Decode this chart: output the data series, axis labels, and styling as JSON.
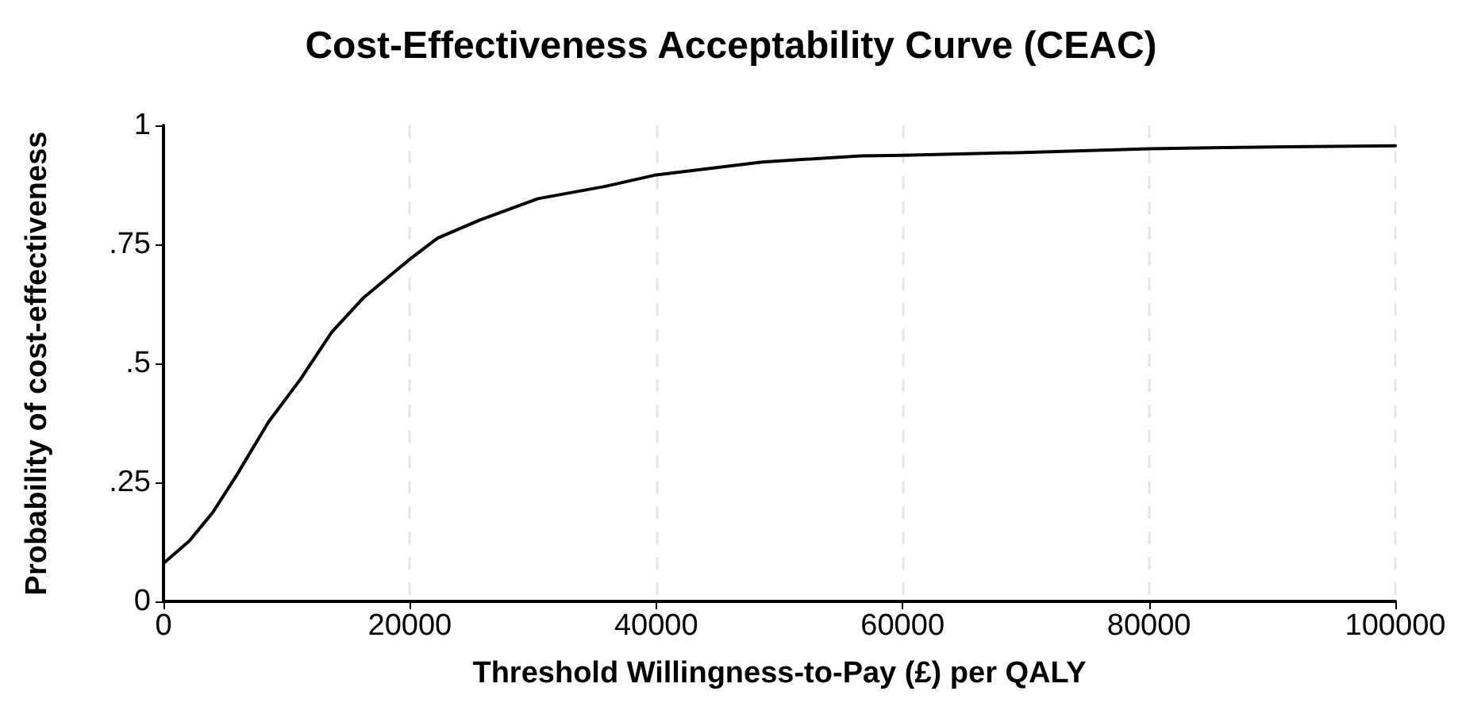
{
  "chart_data": {
    "type": "line",
    "title": "Cost-Effectiveness Acceptability Curve (CEAC)",
    "xlabel": "Threshold Willingness-to-Pay (£) per QALY",
    "ylabel": "Probability of cost-effectiveness",
    "x": [
      0,
      2100,
      4030,
      5960,
      8530,
      11100,
      13670,
      16240,
      20000,
      22250,
      25670,
      30400,
      35700,
      40000,
      48600,
      56600,
      60000,
      69800,
      80000,
      91300,
      100000
    ],
    "series": [
      {
        "color": "#000000",
        "values": [
          0.08,
          0.127,
          0.188,
          0.266,
          0.377,
          0.466,
          0.566,
          0.638,
          0.719,
          0.763,
          0.801,
          0.846,
          0.871,
          0.896,
          0.923,
          0.936,
          0.937,
          0.943,
          0.951,
          0.955,
          0.957
        ]
      }
    ],
    "xlim": [
      0,
      100000
    ],
    "xticks": [
      0,
      20000,
      40000,
      60000,
      80000,
      100000
    ],
    "ylim": [
      0,
      1
    ],
    "yticks": [
      {
        "value": 0,
        "label": "0"
      },
      {
        "value": 0.25,
        "label": ".25"
      },
      {
        "value": 0.5,
        "label": ".5"
      },
      {
        "value": 0.75,
        "label": ".75"
      },
      {
        "value": 1,
        "label": "1"
      }
    ],
    "grid": "x",
    "marker": "none",
    "line_style": "solid"
  }
}
